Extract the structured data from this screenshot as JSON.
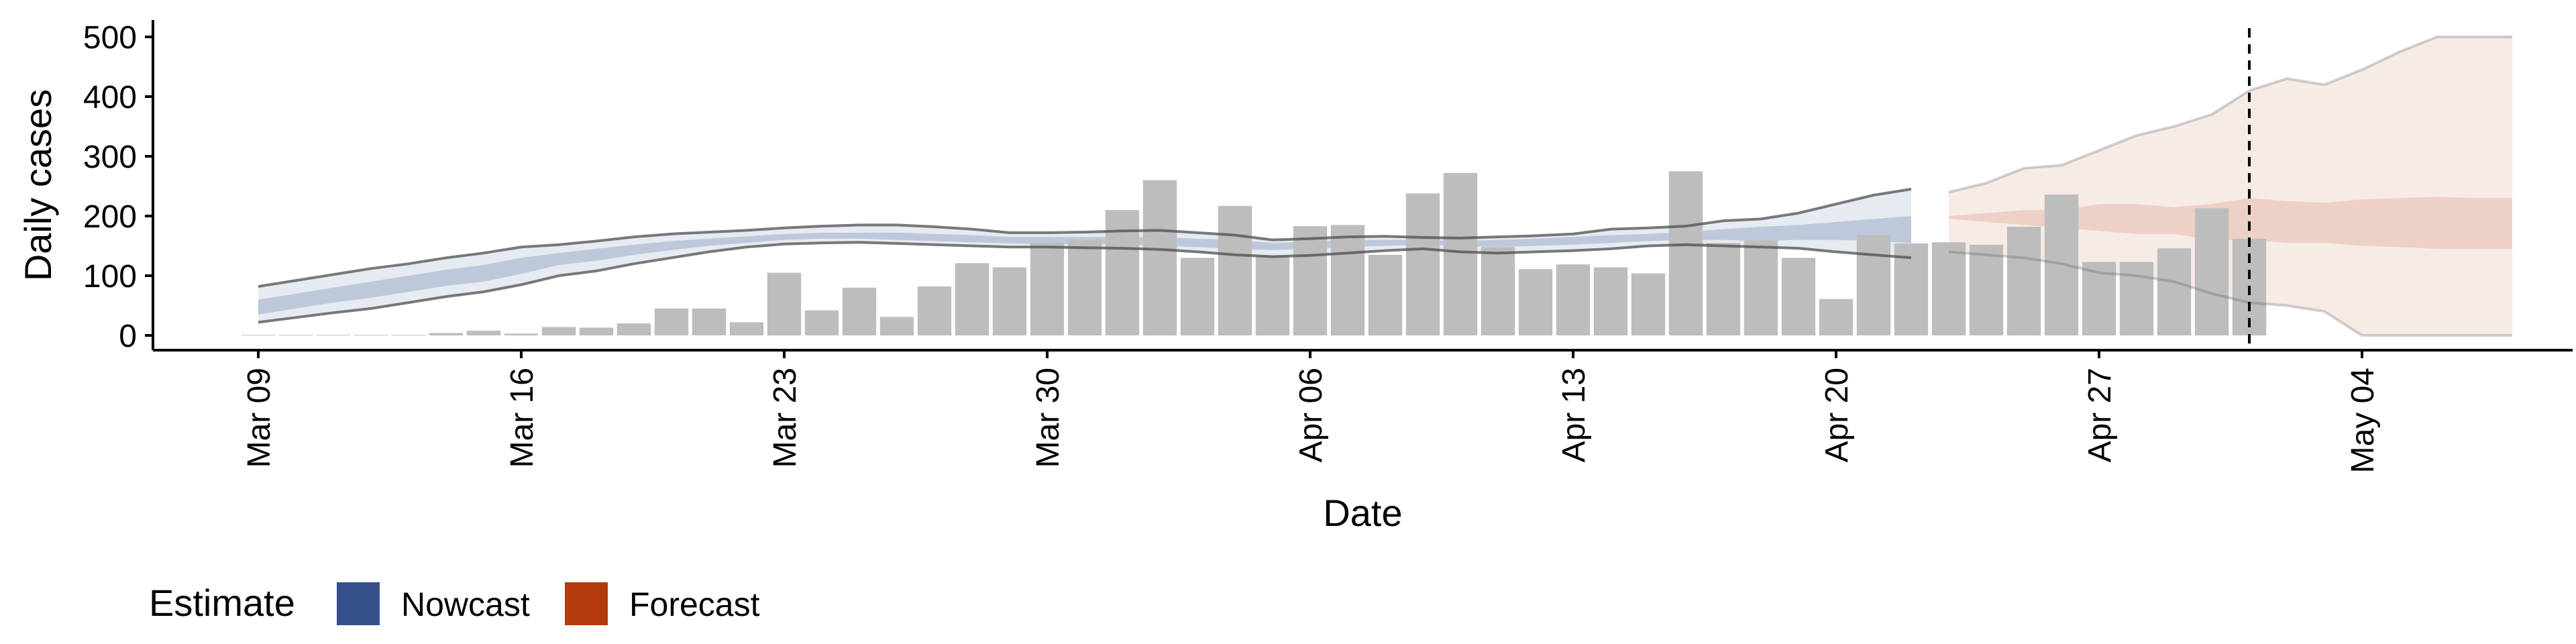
{
  "chart_data": {
    "type": "bar",
    "xlabel": "Date",
    "ylabel": "Daily cases",
    "ylim": [
      0,
      525
    ],
    "yticks": [
      0,
      100,
      200,
      300,
      400,
      500
    ],
    "x_start": "2020-03-09",
    "x_ticks": [
      {
        "date": "2020-03-09",
        "label": "Mar 09"
      },
      {
        "date": "2020-03-16",
        "label": "Mar 16"
      },
      {
        "date": "2020-03-23",
        "label": "Mar 23"
      },
      {
        "date": "2020-03-30",
        "label": "Mar 30"
      },
      {
        "date": "2020-04-06",
        "label": "Apr 06"
      },
      {
        "date": "2020-04-13",
        "label": "Apr 13"
      },
      {
        "date": "2020-04-20",
        "label": "Apr 20"
      },
      {
        "date": "2020-04-27",
        "label": "Apr 27"
      },
      {
        "date": "2020-05-04",
        "label": "May 04"
      }
    ],
    "grid": false,
    "reported_cases": [
      1,
      1,
      1,
      1,
      1,
      4,
      8,
      3,
      14,
      13,
      20,
      45,
      45,
      22,
      105,
      42,
      80,
      31,
      82,
      121,
      114,
      155,
      160,
      210,
      260,
      130,
      217,
      133,
      183,
      185,
      135,
      238,
      272,
      148,
      111,
      119,
      114,
      104,
      275,
      155,
      159,
      130,
      61,
      168,
      154,
      156,
      152,
      182,
      236,
      123,
      123,
      146,
      213,
      162
    ],
    "vertical_marker_date": "2020-05-01",
    "nowcast_lower_90": [
      22,
      30,
      38,
      45,
      55,
      65,
      73,
      85,
      100,
      108,
      120,
      130,
      140,
      148,
      153,
      155,
      156,
      154,
      152,
      150,
      148,
      148,
      147,
      146,
      144,
      140,
      135,
      132,
      134,
      138,
      142,
      145,
      140,
      138,
      140,
      142,
      145,
      150,
      152,
      150,
      148,
      146,
      140,
      135,
      130
    ],
    "nowcast_upper_90": [
      82,
      92,
      102,
      112,
      120,
      130,
      138,
      148,
      152,
      158,
      165,
      170,
      173,
      176,
      180,
      183,
      185,
      185,
      182,
      178,
      172,
      172,
      173,
      175,
      176,
      172,
      168,
      160,
      162,
      165,
      166,
      164,
      163,
      165,
      167,
      170,
      178,
      180,
      183,
      192,
      195,
      205,
      220,
      235,
      245
    ],
    "nowcast_lower_50": [
      35,
      45,
      55,
      63,
      73,
      83,
      90,
      103,
      118,
      125,
      135,
      143,
      150,
      155,
      160,
      162,
      162,
      160,
      158,
      156,
      154,
      153,
      153,
      152,
      150,
      148,
      145,
      143,
      145,
      148,
      150,
      152,
      150,
      148,
      150,
      152,
      155,
      158,
      160,
      160,
      158,
      160,
      160,
      158,
      155
    ],
    "nowcast_upper_50": [
      60,
      70,
      80,
      90,
      100,
      110,
      118,
      130,
      138,
      145,
      152,
      158,
      162,
      166,
      170,
      172,
      172,
      172,
      170,
      168,
      165,
      165,
      165,
      165,
      164,
      162,
      160,
      155,
      157,
      160,
      160,
      160,
      158,
      160,
      162,
      165,
      168,
      170,
      173,
      178,
      182,
      185,
      190,
      195,
      200
    ],
    "forecast_lower_90": [
      140,
      135,
      130,
      120,
      105,
      100,
      90,
      70,
      55,
      50,
      40,
      0,
      0,
      0,
      0,
      0
    ],
    "forecast_upper_90": [
      240,
      255,
      280,
      285,
      310,
      335,
      350,
      370,
      410,
      430,
      420,
      445,
      475,
      500,
      500,
      500
    ],
    "forecast_lower_50": [
      195,
      190,
      185,
      180,
      175,
      170,
      170,
      160,
      160,
      155,
      155,
      150,
      148,
      145,
      145,
      145
    ],
    "forecast_upper_50": [
      200,
      205,
      210,
      210,
      220,
      220,
      215,
      220,
      230,
      225,
      222,
      228,
      230,
      232,
      230,
      230
    ]
  },
  "legend": {
    "title": "Estimate",
    "items": [
      {
        "label": "Nowcast",
        "color": "#34508c"
      },
      {
        "label": "Forecast",
        "color": "#b23a0c"
      }
    ]
  },
  "colors": {
    "bar": "#bdbdbd",
    "nowcast_band": "#34508c",
    "forecast_band": "#b23a0c",
    "axis": "#000000"
  }
}
